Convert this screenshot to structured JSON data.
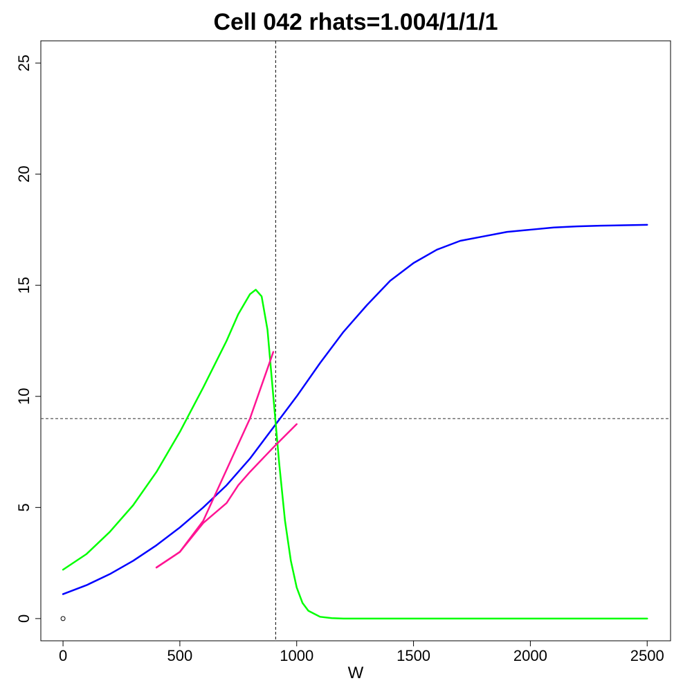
{
  "chart_data": {
    "type": "line",
    "title": "Cell 042 rhats=1.004/1/1/1",
    "xlabel": "W",
    "ylabel": "",
    "xlim": [
      -95,
      2600
    ],
    "ylim": [
      -1,
      26
    ],
    "x_ticks": [
      0,
      500,
      1000,
      1500,
      2000,
      2500
    ],
    "x_tick_labels": [
      "0",
      "500",
      "1000",
      "1500",
      "2000",
      "2500"
    ],
    "y_ticks": [
      0,
      5,
      10,
      15,
      20,
      25
    ],
    "y_tick_labels": [
      "0",
      "5",
      "10",
      "15",
      "20",
      "25"
    ],
    "grid": false,
    "legend": false,
    "reference_lines": {
      "vertical_x": 910,
      "horizontal_y": 9,
      "style": "dashed"
    },
    "points": [
      {
        "x": 0,
        "y": 0,
        "marker": "open-circle"
      }
    ],
    "series": [
      {
        "color": "#0000ff",
        "x": [
          0,
          100,
          200,
          300,
          400,
          500,
          600,
          700,
          800,
          900,
          1000,
          1100,
          1200,
          1300,
          1400,
          1500,
          1600,
          1700,
          1800,
          1900,
          2000,
          2100,
          2200,
          2300,
          2400,
          2500
        ],
        "y": [
          1.1,
          1.5,
          2.0,
          2.6,
          3.3,
          4.1,
          5.0,
          6.0,
          7.2,
          8.6,
          10.0,
          11.5,
          12.9,
          14.1,
          15.2,
          16.0,
          16.6,
          17.0,
          17.2,
          17.4,
          17.5,
          17.6,
          17.65,
          17.68,
          17.7,
          17.72
        ]
      },
      {
        "color": "#00ff00",
        "x": [
          0,
          100,
          200,
          300,
          400,
          500,
          600,
          700,
          750,
          800,
          825,
          850,
          875,
          900,
          925,
          950,
          975,
          1000,
          1025,
          1050,
          1100,
          1150,
          1200,
          1500,
          2000,
          2500
        ],
        "y": [
          2.2,
          2.9,
          3.9,
          5.1,
          6.6,
          8.4,
          10.4,
          12.5,
          13.7,
          14.6,
          14.8,
          14.5,
          13.0,
          10.0,
          7.0,
          4.4,
          2.6,
          1.4,
          0.7,
          0.35,
          0.08,
          0.02,
          0.0,
          0.0,
          0.0,
          0.0
        ]
      },
      {
        "color": "#ff1493",
        "x": [
          400,
          500,
          600,
          700,
          800,
          900
        ],
        "y": [
          2.3,
          3.0,
          4.4,
          6.7,
          9.0,
          12.0
        ]
      },
      {
        "color": "#ff1493",
        "x": [
          400,
          500,
          600,
          700,
          750,
          800,
          900,
          1000
        ],
        "y": [
          2.3,
          3.0,
          4.3,
          5.2,
          6.0,
          6.6,
          7.7,
          8.75
        ]
      }
    ]
  }
}
